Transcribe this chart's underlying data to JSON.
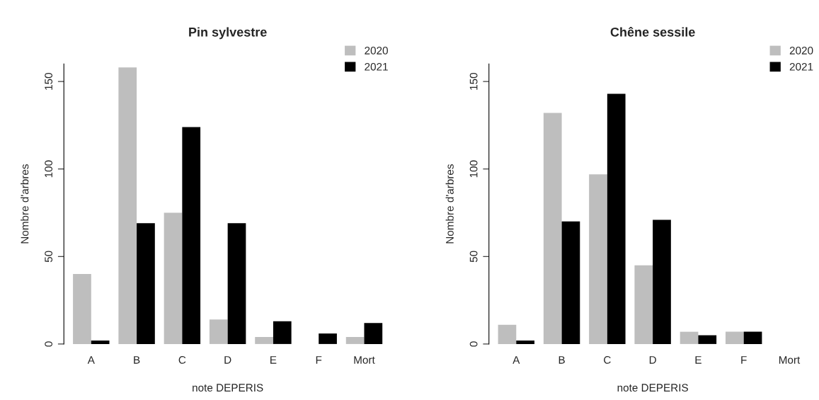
{
  "chart_data": [
    {
      "type": "bar",
      "title": "Pin sylvestre",
      "xlabel": "note DEPERIS",
      "ylabel": "Nombre d'arbres",
      "categories": [
        "A",
        "B",
        "C",
        "D",
        "E",
        "F",
        "Mort"
      ],
      "series": [
        {
          "name": "2020",
          "color": "#bebebe",
          "values": [
            40,
            158,
            75,
            14,
            4,
            0,
            4
          ]
        },
        {
          "name": "2021",
          "color": "#000000",
          "values": [
            2,
            69,
            124,
            69,
            13,
            6,
            12
          ]
        }
      ],
      "ylim": [
        0,
        160
      ],
      "yticks": [
        0,
        50,
        100,
        150
      ],
      "legend": "top right",
      "grid": false
    },
    {
      "type": "bar",
      "title": "Chêne sessile",
      "xlabel": "note DEPERIS",
      "ylabel": "Nombre d'arbres",
      "categories": [
        "A",
        "B",
        "C",
        "D",
        "E",
        "F",
        "Mort"
      ],
      "series": [
        {
          "name": "2020",
          "color": "#bebebe",
          "values": [
            11,
            132,
            97,
            45,
            7,
            7,
            0
          ]
        },
        {
          "name": "2021",
          "color": "#000000",
          "values": [
            2,
            70,
            143,
            71,
            5,
            7,
            0
          ]
        }
      ],
      "ylim": [
        0,
        160
      ],
      "yticks": [
        0,
        50,
        100,
        150
      ],
      "legend": "top right",
      "grid": false
    }
  ]
}
